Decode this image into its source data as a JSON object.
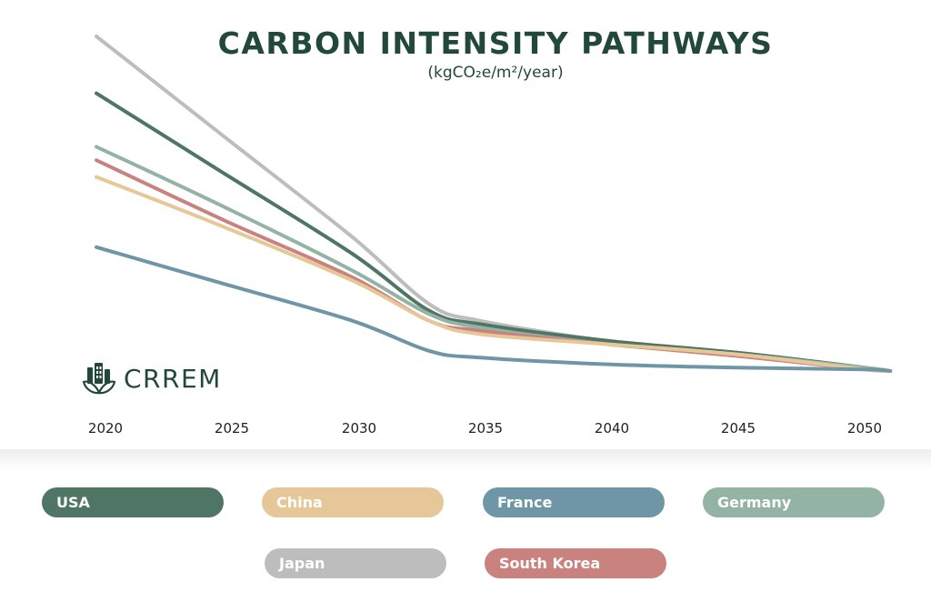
{
  "title": "CARBON INTENSITY PATHWAYS",
  "subtitle": "(kgCO₂e/m²/year)",
  "logo": {
    "text": "CRREM"
  },
  "colors": {
    "title": "#22483a",
    "USA": "#4f7564",
    "China": "#e6c898",
    "France": "#6f96a7",
    "Germany": "#93b3a5",
    "Japan": "#bdbdbd",
    "South Korea": "#ca827e"
  },
  "chart_data": {
    "type": "line",
    "x": [
      2020,
      2025,
      2030,
      2033,
      2035,
      2040,
      2045,
      2050,
      2051
    ],
    "xticks": [
      "2020",
      "2025",
      "2030",
      "2035",
      "2040",
      "2045",
      "2050"
    ],
    "ylim": [
      0,
      100
    ],
    "grid": false,
    "legend_placement": "bottom",
    "series": [
      {
        "name": "Japan",
        "values": [
          100,
          70,
          40,
          20,
          15,
          9,
          5.5,
          1,
          0
        ]
      },
      {
        "name": "USA",
        "values": [
          83,
          59,
          35,
          18,
          14,
          9,
          5.5,
          1,
          0
        ]
      },
      {
        "name": "Germany",
        "values": [
          67,
          49,
          30,
          17,
          13,
          8,
          5,
          1,
          0
        ]
      },
      {
        "name": "South Korea",
        "values": [
          63,
          45,
          28,
          15,
          12,
          8,
          4.5,
          0.5,
          0
        ]
      },
      {
        "name": "China",
        "values": [
          58,
          43,
          27,
          15,
          11,
          8,
          5,
          0.5,
          0
        ]
      },
      {
        "name": "France",
        "values": [
          37,
          26,
          15,
          6,
          4,
          2,
          1,
          0.5,
          0
        ]
      }
    ]
  },
  "legend": [
    {
      "label": "USA",
      "color": "#4f7564"
    },
    {
      "label": "China",
      "color": "#e6c898"
    },
    {
      "label": "France",
      "color": "#6f96a7"
    },
    {
      "label": "Germany",
      "color": "#93b3a5"
    },
    {
      "label": "Japan",
      "color": "#bdbdbd"
    },
    {
      "label": "South Korea",
      "color": "#ca827e"
    }
  ]
}
